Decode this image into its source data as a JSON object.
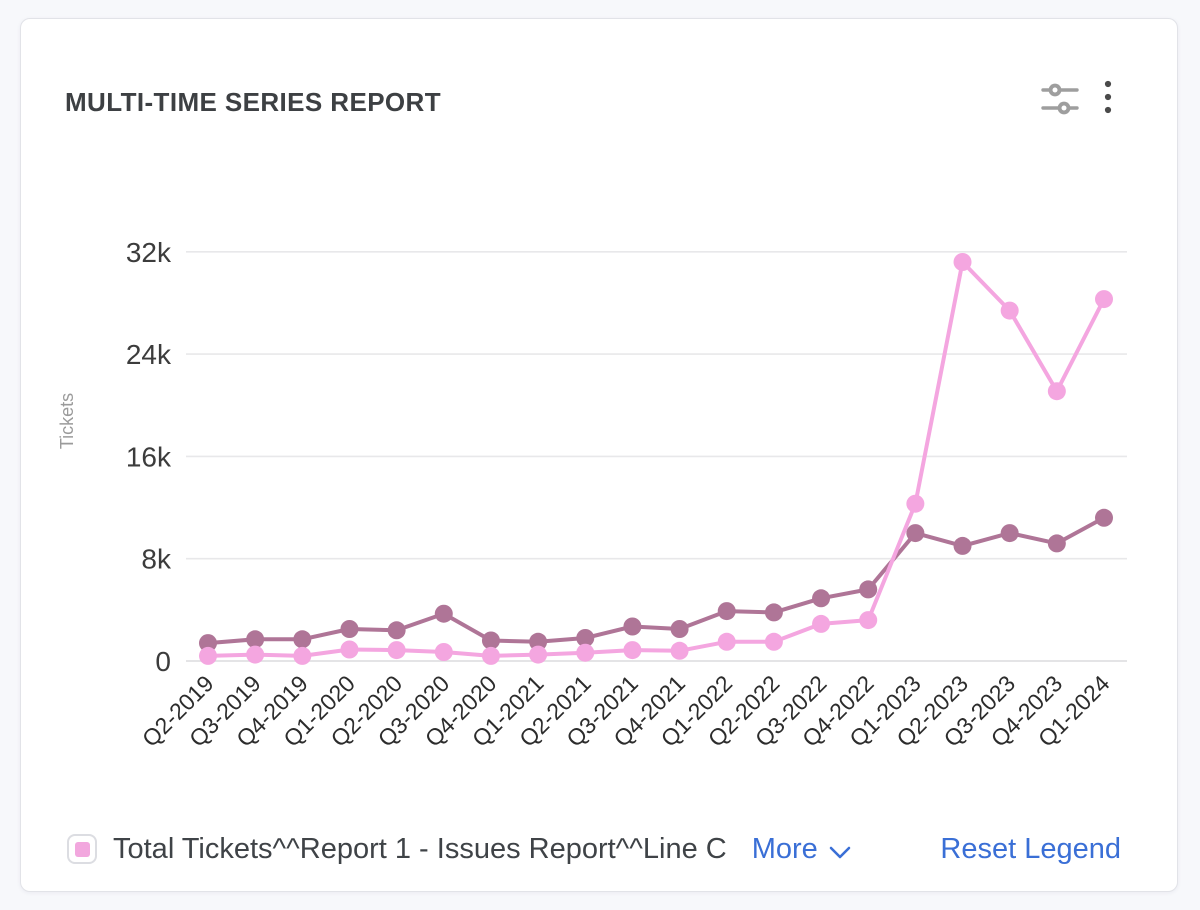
{
  "card": {
    "title": "MULTI-TIME SERIES REPORT"
  },
  "controls": {
    "settings_icon": "sliders-filter",
    "menu_icon": "kebab-vertical-dots",
    "icon_color": "#9e9e9e",
    "menu_dot_color": "#4a4a4a"
  },
  "legend": {
    "swatch_color": "#f2a7de",
    "label": "Total Tickets^^Report 1 - Issues Report^^Line C",
    "more_label": "More",
    "reset_label": "Reset Legend",
    "link_color": "#3a6fd6"
  },
  "chart_data": {
    "type": "line",
    "title": "MULTI-TIME SERIES REPORT",
    "xlabel": "",
    "ylabel": "Tickets",
    "ylim": [
      0,
      32000
    ],
    "yticks": [
      0,
      8000,
      16000,
      24000,
      32000
    ],
    "ytick_labels": [
      "0",
      "8k",
      "16k",
      "24k",
      "32k"
    ],
    "grid": "horizontal",
    "legend_position": "bottom",
    "categories": [
      "Q2-2019",
      "Q3-2019",
      "Q4-2019",
      "Q1-2020",
      "Q2-2020",
      "Q3-2020",
      "Q4-2020",
      "Q1-2021",
      "Q2-2021",
      "Q3-2021",
      "Q4-2021",
      "Q1-2022",
      "Q2-2022",
      "Q3-2022",
      "Q4-2022",
      "Q1-2023",
      "Q2-2023",
      "Q3-2023",
      "Q4-2023",
      "Q1-2024"
    ],
    "series": [
      {
        "name": "",
        "color": "#af7597",
        "values": [
          1400,
          1700,
          1700,
          2500,
          2400,
          3700,
          1600,
          1500,
          1800,
          2700,
          2500,
          3900,
          3800,
          4900,
          5600,
          10000,
          9000,
          10000,
          9200,
          11200
        ]
      },
      {
        "name": "Total Tickets^^Report 1 - Issues Report^^Line C",
        "color": "#f4a6e0",
        "values": [
          400,
          500,
          400,
          900,
          850,
          700,
          400,
          500,
          650,
          850,
          800,
          1500,
          1500,
          2900,
          3200,
          12300,
          31200,
          27400,
          21100,
          28300
        ]
      }
    ],
    "axis_colors": {
      "gridline": "#e8e8ea",
      "zero_line": "#dcdcde",
      "ytick_text": "#3c3c3c",
      "xtick_text": "#2c2c2c",
      "ylabel_text": "#9b9b9b"
    }
  }
}
